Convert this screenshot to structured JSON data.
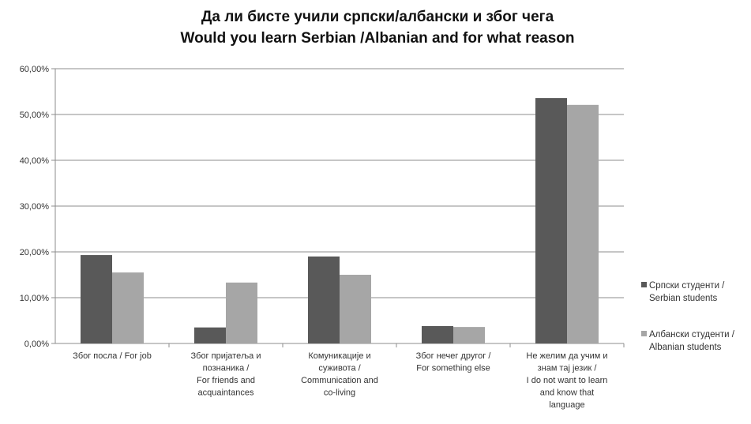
{
  "chart_data": {
    "type": "bar",
    "title_lines": [
      "Да ли бисте учили српски/албански и због чега",
      "Would you learn Serbian /Albanian and for what reason"
    ],
    "xlabel": "",
    "ylabel": "",
    "ylim": [
      0,
      60
    ],
    "y_ticks": [
      "0,00%",
      "10,00%",
      "20,00%",
      "30,00%",
      "40,00%",
      "50,00%",
      "60,00%"
    ],
    "grid": true,
    "legend_position": "right",
    "categories": [
      [
        "Због посла / For job"
      ],
      [
        "Због пријатеља и",
        "познаника /",
        "For friends and",
        "acquaintances"
      ],
      [
        "Комуникације и",
        "суживота /",
        "Communication and",
        "co-living"
      ],
      [
        "Због нечег другог /",
        "For something else"
      ],
      [
        "Не желим да учим и",
        "знам тај језик /",
        "I do not want to learn",
        "and know that",
        "language"
      ]
    ],
    "series": [
      {
        "name_lines": [
          "Српски студенти /",
          "Serbian students"
        ],
        "color": "#595959",
        "values": [
          19.3,
          3.5,
          19.0,
          3.8,
          53.6
        ]
      },
      {
        "name_lines": [
          "Албански студенти /",
          "Albanian students"
        ],
        "color": "#a6a6a6",
        "values": [
          15.5,
          13.3,
          15.0,
          3.6,
          52.1
        ]
      }
    ]
  }
}
